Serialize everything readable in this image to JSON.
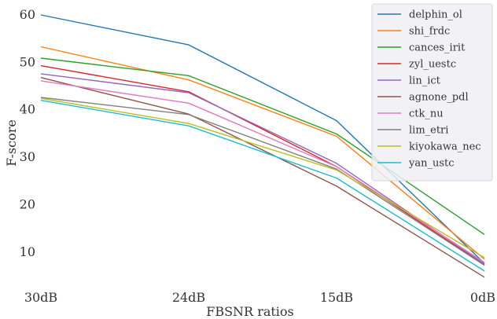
{
  "chart_data": {
    "type": "line",
    "title": "",
    "xlabel": "FBSNR ratios",
    "ylabel": "F-score",
    "categories": [
      "30dB",
      "24dB",
      "15dB",
      "0dB"
    ],
    "yticks": [
      10,
      20,
      30,
      40,
      50,
      60
    ],
    "ylim": [
      3.5,
      61
    ],
    "grid": false,
    "legend_position": "top-right",
    "series": [
      {
        "name": "delphin_ol",
        "color": "#1f77b4",
        "values": [
          60.0,
          53.7,
          37.7,
          7.6
        ]
      },
      {
        "name": "shi_frdc",
        "color": "#ff7f0e",
        "values": [
          53.3,
          46.3,
          34.4,
          8.5
        ]
      },
      {
        "name": "cances_irit",
        "color": "#2ca02c",
        "values": [
          50.9,
          47.2,
          34.9,
          13.7
        ]
      },
      {
        "name": "zyl_uestc",
        "color": "#d62728",
        "values": [
          49.3,
          43.8,
          28.0,
          7.3
        ]
      },
      {
        "name": "lin_ict",
        "color": "#9467bd",
        "values": [
          47.6,
          43.6,
          28.7,
          7.5
        ]
      },
      {
        "name": "agnone_pdl",
        "color": "#8c564b",
        "values": [
          46.8,
          39.1,
          23.9,
          4.7
        ]
      },
      {
        "name": "ctk_nu",
        "color": "#e377c2",
        "values": [
          46.1,
          41.4,
          28.0,
          7.8
        ]
      },
      {
        "name": "lim_etri",
        "color": "#7f7f7f",
        "values": [
          42.6,
          39.0,
          27.5,
          7.2
        ]
      },
      {
        "name": "kiyokawa_nec",
        "color": "#bcbd22",
        "values": [
          42.4,
          37.1,
          27.3,
          8.8
        ]
      },
      {
        "name": "yan_ustc",
        "color": "#17becf",
        "values": [
          42.0,
          36.6,
          25.6,
          6.0
        ]
      }
    ]
  }
}
